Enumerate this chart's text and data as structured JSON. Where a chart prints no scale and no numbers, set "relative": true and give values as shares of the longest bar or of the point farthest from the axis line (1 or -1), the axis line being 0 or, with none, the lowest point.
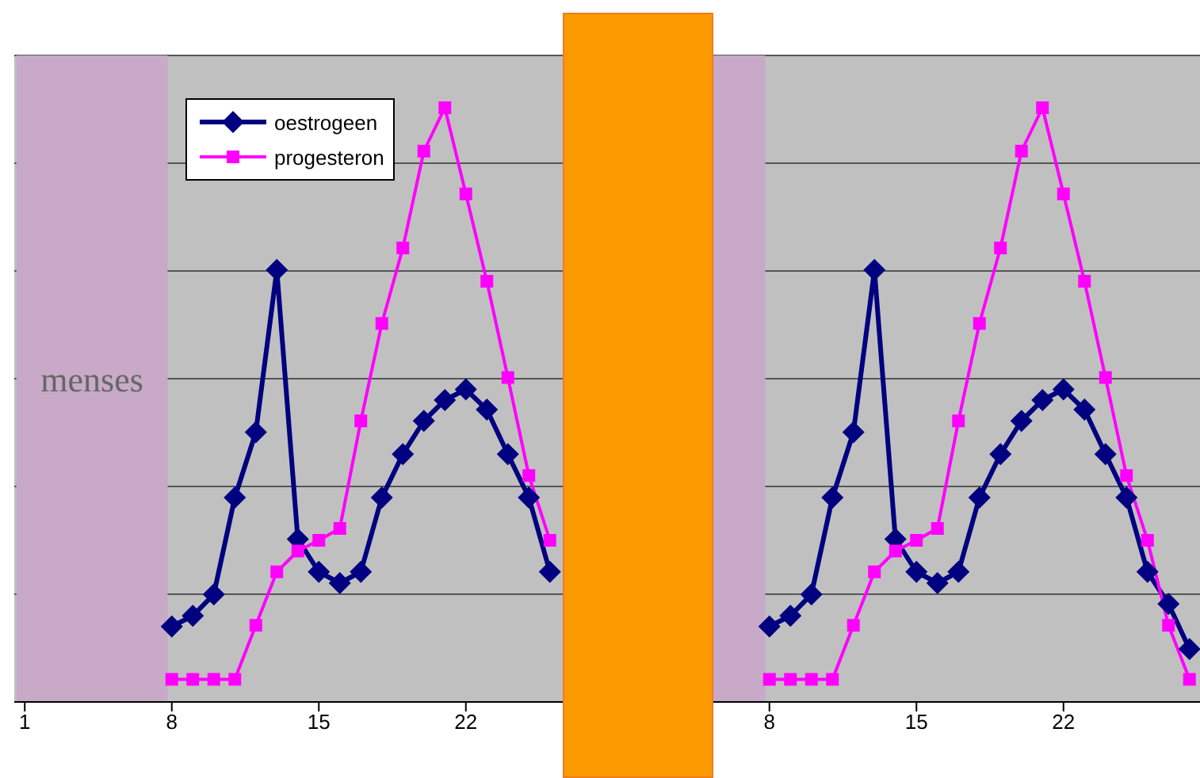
{
  "chart_data": [
    {
      "type": "line",
      "relative": true,
      "x": [
        8,
        9,
        10,
        11,
        12,
        13,
        14,
        15,
        16,
        17,
        18,
        19,
        20,
        21,
        22,
        23,
        24,
        25,
        26
      ],
      "xlim": [
        0.5,
        28.5
      ],
      "xticks": [
        1,
        8,
        15,
        22
      ],
      "grid": "y",
      "legend": "top left",
      "series": [
        {
          "name": "oestrogeen",
          "color": "#000080",
          "marker": "diamond",
          "values": [
            0.127,
            0.145,
            0.181,
            0.344,
            0.454,
            0.727,
            0.274,
            0.219,
            0.2,
            0.219,
            0.344,
            0.417,
            0.473,
            0.508,
            0.526,
            0.492,
            0.417,
            0.344,
            0.219
          ]
        },
        {
          "name": "progesteron",
          "color": "#ff00ff",
          "marker": "square",
          "values": [
            0.038,
            0.038,
            0.038,
            0.038,
            0.129,
            0.219,
            0.254,
            0.272,
            0.292,
            0.473,
            0.637,
            0.764,
            0.927,
            1,
            0.855,
            0.708,
            0.546,
            0.381,
            0.272
          ]
        }
      ],
      "bands": [
        {
          "axis": "x",
          "from": 0.6,
          "to": 7.8,
          "label": "menses",
          "color": "#c8a9c8"
        }
      ]
    },
    {
      "type": "line",
      "relative": true,
      "x": [
        8,
        9,
        10,
        11,
        12,
        13,
        14,
        15,
        16,
        17,
        18,
        19,
        20,
        21,
        22,
        23,
        24,
        25,
        26,
        27,
        28
      ],
      "xlim": [
        0.5,
        28.5
      ],
      "xticks": [
        8,
        15,
        22
      ],
      "grid": "y",
      "series": [
        {
          "color": "#000080",
          "marker": "diamond",
          "values": [
            0.127,
            0.145,
            0.181,
            0.344,
            0.454,
            0.727,
            0.274,
            0.219,
            0.2,
            0.219,
            0.344,
            0.417,
            0.473,
            0.508,
            0.526,
            0.492,
            0.417,
            0.344,
            0.219,
            0.165,
            0.089
          ]
        },
        {
          "color": "#ff00ff",
          "marker": "square",
          "values": [
            0.038,
            0.038,
            0.038,
            0.038,
            0.129,
            0.219,
            0.254,
            0.272,
            0.292,
            0.473,
            0.637,
            0.764,
            0.927,
            1,
            0.855,
            0.708,
            0.546,
            0.381,
            0.272,
            0.129,
            0.038
          ]
        }
      ],
      "bands": [
        {
          "axis": "x",
          "from": 0.6,
          "to": 7.8,
          "color": "#c8a9c8"
        }
      ]
    }
  ]
}
